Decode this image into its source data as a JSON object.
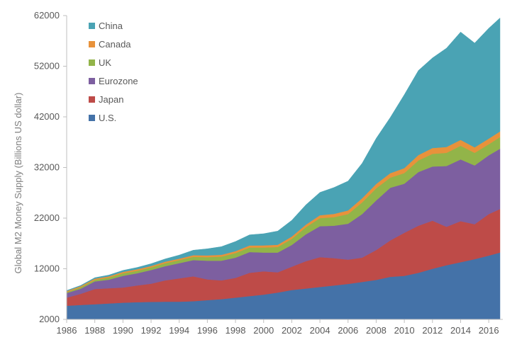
{
  "chart_data": {
    "type": "area",
    "stacked": true,
    "title": "",
    "xlabel": "",
    "ylabel": "Global M2 Money Supply (Billions US dollar)",
    "xlim": [
      1986,
      2017
    ],
    "ylim": [
      2000,
      62000
    ],
    "x_ticks": [
      "1986",
      "1988",
      "1990",
      "1992",
      "1994",
      "1996",
      "1998",
      "2000",
      "2002",
      "2004",
      "2006",
      "2008",
      "2010",
      "2012",
      "2014",
      "2016"
    ],
    "y_ticks": [
      "2000",
      "12000",
      "22000",
      "32000",
      "42000",
      "52000",
      "62000"
    ],
    "grid": false,
    "legend_position": "top-left",
    "x": [
      1986,
      1987,
      1988,
      1989,
      1990,
      1991,
      1992,
      1993,
      1994,
      1995,
      1996,
      1997,
      1998,
      1999,
      2000,
      2001,
      2002,
      2003,
      2004,
      2005,
      2006,
      2007,
      2008,
      2009,
      2010,
      2011,
      2012,
      2013,
      2014,
      2015,
      2016,
      2016.8
    ],
    "series": [
      {
        "name": "U.S.",
        "color": "#4472a8",
        "values": [
          2700,
          2850,
          3000,
          3150,
          3300,
          3400,
          3450,
          3500,
          3500,
          3600,
          3800,
          4000,
          4300,
          4600,
          4900,
          5300,
          5800,
          6100,
          6400,
          6700,
          7000,
          7400,
          7800,
          8400,
          8600,
          9200,
          10000,
          10700,
          11300,
          11900,
          12600,
          13200
        ]
      },
      {
        "name": "Japan",
        "color": "#be4b48",
        "values": [
          1600,
          2200,
          3000,
          3000,
          3000,
          3300,
          3600,
          4200,
          4600,
          4900,
          4100,
          3700,
          3900,
          4600,
          4600,
          4000,
          4600,
          5400,
          5900,
          5400,
          4800,
          4800,
          5900,
          7200,
          8500,
          9300,
          9500,
          7600,
          8100,
          6900,
          8200,
          8600
        ]
      },
      {
        "name": "Eurozone",
        "color": "#7d5fa0",
        "values": [
          900,
          1000,
          1500,
          1700,
          2300,
          2400,
          2700,
          2800,
          3000,
          3200,
          3700,
          3900,
          4000,
          4100,
          3700,
          3900,
          4300,
          5300,
          6100,
          6400,
          7100,
          8600,
          9800,
          10400,
          9700,
          10600,
          10700,
          12000,
          12200,
          11600,
          11600,
          11900
        ]
      },
      {
        "name": "UK",
        "color": "#92b449",
        "values": [
          200,
          300,
          300,
          400,
          500,
          500,
          500,
          600,
          600,
          650,
          700,
          800,
          900,
          900,
          1000,
          1100,
          1200,
          1400,
          1600,
          1700,
          1900,
          2300,
          2400,
          2000,
          2100,
          2300,
          2500,
          2600,
          2700,
          2500,
          2200,
          2300
        ]
      },
      {
        "name": "Canada",
        "color": "#e8923b",
        "values": [
          200,
          220,
          240,
          260,
          280,
          300,
          300,
          300,
          300,
          320,
          340,
          360,
          380,
          400,
          420,
          440,
          460,
          520,
          580,
          640,
          720,
          820,
          860,
          880,
          980,
          1060,
          1140,
          1160,
          1160,
          1080,
          1100,
          1120
        ]
      },
      {
        "name": "China",
        "color": "#4aa3b4",
        "values": [
          100,
          150,
          200,
          250,
          300,
          350,
          450,
          550,
          700,
          1000,
          1300,
          1600,
          1900,
          2100,
          2300,
          2700,
          3200,
          3900,
          4500,
          5200,
          5800,
          6900,
          9000,
          11000,
          14500,
          16700,
          17800,
          19500,
          21300,
          20600,
          21800,
          22400
        ]
      }
    ]
  }
}
